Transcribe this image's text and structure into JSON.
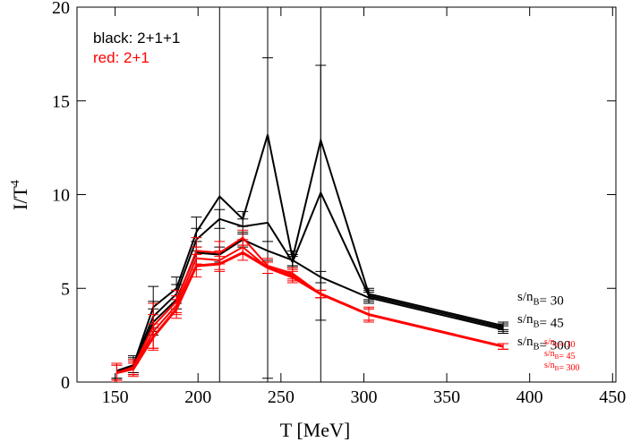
{
  "chart_data": {
    "type": "line",
    "x_label": "T [MeV]",
    "y_label": "I/T",
    "y_label_sup": "4",
    "notes": [
      {
        "text": "black: 2+1+1",
        "color": "#000000"
      },
      {
        "text": "red: 2+1",
        "color": "#ff0000"
      }
    ],
    "legend_label": "s/n",
    "legend_label_sub": "B",
    "x": [
      151,
      161,
      173,
      187,
      199,
      213,
      227,
      242,
      257,
      274,
      303,
      384
    ],
    "series": [
      {
        "name": "= 30",
        "color": "#000000",
        "group": "black",
        "width": 2,
        "values": [
          0.6,
          0.9,
          4.0,
          5.0,
          8.0,
          9.9,
          8.7,
          13.2,
          6.6,
          12.9,
          4.7,
          3.0
        ],
        "errors": [
          0.4,
          0.5,
          1.1,
          0.6,
          0.8,
          12,
          0.4,
          13,
          0.4,
          15,
          0.3,
          0.2
        ]
      },
      {
        "name": "= 45",
        "color": "#000000",
        "group": "black",
        "width": 2,
        "values": [
          0.6,
          0.9,
          3.5,
          4.7,
          7.6,
          8.7,
          8.3,
          8.5,
          6.4,
          10.1,
          4.6,
          2.9
        ],
        "errors": [
          0.4,
          0.4,
          0.8,
          0.5,
          0.6,
          0.5,
          0.4,
          8.8,
          0.3,
          6.8,
          0.3,
          0.2
        ]
      },
      {
        "name": "= 300",
        "color": "#000000",
        "group": "black",
        "width": 2,
        "values": [
          0.5,
          0.8,
          3.2,
          4.4,
          6.9,
          6.8,
          7.6,
          7.0,
          6.5,
          5.6,
          4.5,
          2.8
        ],
        "errors": [
          0.4,
          0.4,
          0.7,
          0.5,
          0.6,
          0.4,
          0.4,
          0.5,
          0.3,
          0.3,
          0.3,
          0.2
        ]
      },
      {
        "name": "= 30",
        "color": "#ff0000",
        "group": "red",
        "width": 2,
        "values": [
          0.5,
          0.8,
          3.0,
          4.3,
          7.0,
          6.9,
          7.7,
          6.2,
          5.8,
          4.7,
          3.6,
          1.9
        ],
        "errors": [
          0.4,
          0.4,
          1.2,
          0.6,
          0.7,
          0.6,
          0.4,
          0.4,
          0.3,
          0.2,
          0.4,
          0.15
        ]
      },
      {
        "name": "= 45",
        "color": "#ff0000",
        "group": "red",
        "width": 2,
        "values": [
          0.5,
          0.7,
          2.7,
          4.1,
          6.6,
          6.5,
          7.2,
          6.1,
          5.7,
          4.7,
          3.6,
          1.9
        ],
        "errors": [
          0.4,
          0.4,
          0.9,
          0.5,
          0.6,
          0.5,
          0.4,
          0.3,
          0.3,
          0.2,
          0.3,
          0.15
        ]
      },
      {
        "name": "= 300",
        "color": "#ff0000",
        "group": "red",
        "width": 3,
        "values": [
          0.5,
          0.7,
          2.4,
          3.9,
          6.2,
          6.3,
          6.9,
          6.1,
          5.6,
          4.7,
          3.6,
          1.9
        ],
        "errors": [
          0.5,
          0.3,
          0.7,
          0.5,
          0.6,
          0.4,
          0.4,
          0.3,
          0.3,
          0.2,
          0.3,
          0.15
        ]
      }
    ],
    "xlim": [
      127,
      452
    ],
    "xticks": [
      150,
      200,
      250,
      300,
      350,
      400,
      450
    ],
    "ylim": [
      0,
      20
    ],
    "yticks": [
      0,
      5,
      10,
      15,
      20
    ]
  }
}
